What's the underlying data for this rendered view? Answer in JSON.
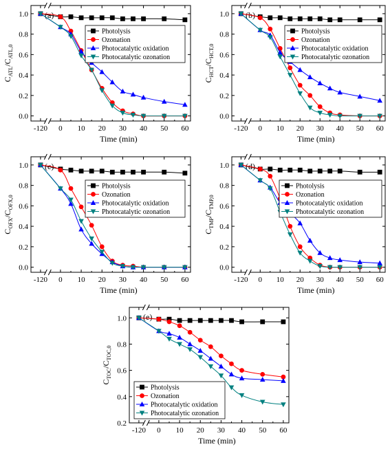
{
  "chart_data": [
    {
      "type": "line",
      "panel": "(a)",
      "xlabel": "Time (min)",
      "ylabel_main": "C",
      "ylabel_sub1": "ATL",
      "ylabel_sep": "/C",
      "ylabel_sub2": "ATL,0",
      "xticks": [
        "-120",
        "0",
        "10",
        "20",
        "30",
        "40",
        "50",
        "60"
      ],
      "yticks": [
        "0.0",
        "0.2",
        "0.4",
        "0.6",
        "0.8",
        "1.0"
      ],
      "ylim": [
        -0.05,
        1.08
      ],
      "legend_position": "top-right",
      "series": [
        {
          "name": "Photolysis",
          "color": "#000000",
          "marker": "square",
          "x": [
            -120,
            0,
            5,
            10,
            15,
            20,
            25,
            30,
            35,
            40,
            50,
            60
          ],
          "y": [
            1.0,
            0.97,
            0.97,
            0.96,
            0.96,
            0.96,
            0.96,
            0.95,
            0.95,
            0.95,
            0.95,
            0.94
          ]
        },
        {
          "name": "Ozonation",
          "color": "#ff0000",
          "marker": "circle",
          "x": [
            -120,
            0,
            5,
            10,
            15,
            20,
            25,
            30,
            35,
            40,
            50,
            60
          ],
          "y": [
            1.0,
            0.97,
            0.83,
            0.64,
            0.45,
            0.27,
            0.13,
            0.05,
            0.02,
            0.0,
            0.0,
            0.0
          ]
        },
        {
          "name": "Photocatalytic oxidation",
          "color": "#0000ff",
          "marker": "triangle-up",
          "x": [
            -120,
            0,
            5,
            10,
            15,
            20,
            25,
            30,
            35,
            40,
            50,
            60
          ],
          "y": [
            1.0,
            0.87,
            0.8,
            0.63,
            0.52,
            0.43,
            0.33,
            0.24,
            0.21,
            0.18,
            0.14,
            0.11
          ]
        },
        {
          "name": "Photocatalytic ozonation",
          "color": "#008080",
          "marker": "triangle-down",
          "x": [
            -120,
            0,
            5,
            10,
            15,
            20,
            25,
            30,
            35,
            40,
            50,
            60
          ],
          "y": [
            1.0,
            0.87,
            0.78,
            0.59,
            0.45,
            0.25,
            0.1,
            0.03,
            0.01,
            0.0,
            0.0,
            0.0
          ]
        }
      ]
    },
    {
      "type": "line",
      "panel": "(b)",
      "xlabel": "Time (min)",
      "ylabel_main": "C",
      "ylabel_sub1": "HCT",
      "ylabel_sep": "/C",
      "ylabel_sub2": "HCT,0",
      "xticks": [
        "-120",
        "0",
        "10",
        "20",
        "30",
        "40",
        "50",
        "60"
      ],
      "yticks": [
        "0.0",
        "0.2",
        "0.4",
        "0.6",
        "0.8",
        "1.0"
      ],
      "ylim": [
        -0.05,
        1.08
      ],
      "legend_position": "top-right",
      "series": [
        {
          "name": "Photolysis",
          "color": "#000000",
          "marker": "square",
          "x": [
            -120,
            0,
            5,
            10,
            15,
            20,
            25,
            30,
            35,
            40,
            50,
            60
          ],
          "y": [
            1.0,
            0.97,
            0.96,
            0.96,
            0.95,
            0.95,
            0.95,
            0.95,
            0.94,
            0.94,
            0.94,
            0.94
          ]
        },
        {
          "name": "Ozonation",
          "color": "#ff0000",
          "marker": "circle",
          "x": [
            -120,
            0,
            5,
            10,
            15,
            20,
            25,
            30,
            35,
            40,
            50,
            60
          ],
          "y": [
            1.0,
            0.96,
            0.85,
            0.66,
            0.47,
            0.3,
            0.2,
            0.09,
            0.03,
            0.01,
            0.0,
            0.0
          ]
        },
        {
          "name": "Photocatalytic oxidation",
          "color": "#0000ff",
          "marker": "triangle-up",
          "x": [
            -120,
            0,
            5,
            10,
            15,
            20,
            25,
            30,
            35,
            40,
            50,
            60
          ],
          "y": [
            1.0,
            0.84,
            0.79,
            0.62,
            0.53,
            0.45,
            0.38,
            0.32,
            0.27,
            0.23,
            0.19,
            0.15
          ]
        },
        {
          "name": "Photocatalytic ozonation",
          "color": "#008080",
          "marker": "triangle-down",
          "x": [
            -120,
            0,
            5,
            10,
            15,
            20,
            25,
            30,
            35,
            40,
            50,
            60
          ],
          "y": [
            1.0,
            0.84,
            0.77,
            0.58,
            0.4,
            0.22,
            0.08,
            0.03,
            0.01,
            0.0,
            0.0,
            0.0
          ]
        }
      ]
    },
    {
      "type": "line",
      "panel": "(c)",
      "xlabel": "Time (min)",
      "ylabel_main": "C",
      "ylabel_sub1": "OFX",
      "ylabel_sep": "/C",
      "ylabel_sub2": "OFX,0",
      "xticks": [
        "-120",
        "0",
        "10",
        "20",
        "30",
        "40",
        "50",
        "60"
      ],
      "yticks": [
        "0.0",
        "0.2",
        "0.4",
        "0.6",
        "0.8",
        "1.0"
      ],
      "ylim": [
        -0.05,
        1.08
      ],
      "legend_position": "top-right",
      "series": [
        {
          "name": "Photolysis",
          "color": "#000000",
          "marker": "square",
          "x": [
            -120,
            0,
            5,
            10,
            15,
            20,
            25,
            30,
            35,
            40,
            50,
            60
          ],
          "y": [
            1.0,
            0.96,
            0.95,
            0.94,
            0.94,
            0.94,
            0.93,
            0.93,
            0.93,
            0.93,
            0.93,
            0.92
          ]
        },
        {
          "name": "Ozonation",
          "color": "#ff0000",
          "marker": "circle",
          "x": [
            -120,
            0,
            5,
            10,
            15,
            20,
            25,
            30,
            35,
            40,
            50,
            60
          ],
          "y": [
            1.0,
            0.95,
            0.77,
            0.59,
            0.41,
            0.2,
            0.06,
            0.02,
            0.01,
            0.0,
            0.0,
            0.0
          ]
        },
        {
          "name": "Photocatalytic oxidation",
          "color": "#0000ff",
          "marker": "triangle-up",
          "x": [
            -120,
            0,
            5,
            10,
            15,
            20,
            25,
            30,
            35,
            40,
            50,
            60
          ],
          "y": [
            1.0,
            0.77,
            0.62,
            0.37,
            0.23,
            0.13,
            0.05,
            0.01,
            0.0,
            0.0,
            0.0,
            0.0
          ]
        },
        {
          "name": "Photocatalytic ozonation",
          "color": "#008080",
          "marker": "triangle-down",
          "x": [
            -120,
            0,
            5,
            10,
            15,
            20,
            25,
            30,
            35,
            40,
            50,
            60
          ],
          "y": [
            1.0,
            0.77,
            0.66,
            0.45,
            0.28,
            0.15,
            0.04,
            0.01,
            0.0,
            0.0,
            0.0,
            0.0
          ]
        }
      ]
    },
    {
      "type": "line",
      "panel": "(d)",
      "xlabel": "Time (min)",
      "ylabel_main": "C",
      "ylabel_sub1": "TMP",
      "ylabel_sep": "/C",
      "ylabel_sub2": "TMP,0",
      "xticks": [
        "-120",
        "0",
        "10",
        "20",
        "30",
        "40",
        "50",
        "60"
      ],
      "yticks": [
        "0.0",
        "0.2",
        "0.4",
        "0.6",
        "0.8",
        "1.0"
      ],
      "ylim": [
        -0.05,
        1.08
      ],
      "legend_position": "top-right",
      "series": [
        {
          "name": "Photolysis",
          "color": "#000000",
          "marker": "square",
          "x": [
            -120,
            0,
            5,
            10,
            15,
            20,
            25,
            30,
            35,
            40,
            50,
            60
          ],
          "y": [
            1.0,
            0.96,
            0.96,
            0.95,
            0.95,
            0.95,
            0.94,
            0.94,
            0.94,
            0.94,
            0.93,
            0.93
          ]
        },
        {
          "name": "Ozonation",
          "color": "#ff0000",
          "marker": "circle",
          "x": [
            -120,
            0,
            5,
            10,
            15,
            20,
            25,
            30,
            35,
            40,
            50,
            60
          ],
          "y": [
            1.0,
            0.96,
            0.89,
            0.67,
            0.4,
            0.2,
            0.09,
            0.02,
            0.0,
            0.0,
            0.0,
            0.0
          ]
        },
        {
          "name": "Photocatalytic oxidation",
          "color": "#0000ff",
          "marker": "triangle-up",
          "x": [
            -120,
            0,
            5,
            10,
            15,
            20,
            25,
            30,
            35,
            40,
            50,
            60
          ],
          "y": [
            1.0,
            0.85,
            0.78,
            0.63,
            0.53,
            0.43,
            0.26,
            0.14,
            0.09,
            0.07,
            0.05,
            0.04
          ]
        },
        {
          "name": "Photocatalytic ozonation",
          "color": "#008080",
          "marker": "triangle-down",
          "x": [
            -120,
            0,
            5,
            10,
            15,
            20,
            25,
            30,
            35,
            40,
            50,
            60
          ],
          "y": [
            1.0,
            0.85,
            0.77,
            0.54,
            0.32,
            0.14,
            0.06,
            0.01,
            0.0,
            0.0,
            0.0,
            0.0
          ]
        }
      ]
    },
    {
      "type": "line",
      "panel": "(e)",
      "xlabel": "Time (min)",
      "ylabel_main": "C",
      "ylabel_sub1": "TOC",
      "ylabel_sep": "/C",
      "ylabel_sub2": "TOC,0",
      "xticks": [
        "-120",
        "0",
        "10",
        "20",
        "30",
        "40",
        "50",
        "60"
      ],
      "yticks": [
        "0.2",
        "0.4",
        "0.6",
        "0.8",
        "1.0"
      ],
      "ylim": [
        0.2,
        1.08
      ],
      "legend_position": "bottom-left",
      "series": [
        {
          "name": "Photolysis",
          "color": "#000000",
          "marker": "square",
          "x": [
            -120,
            0,
            5,
            10,
            15,
            20,
            25,
            30,
            35,
            40,
            50,
            60
          ],
          "y": [
            1.0,
            0.99,
            0.99,
            0.98,
            0.98,
            0.98,
            0.98,
            0.98,
            0.98,
            0.97,
            0.97,
            0.97
          ]
        },
        {
          "name": "Ozonation",
          "color": "#ff0000",
          "marker": "circle",
          "x": [
            -120,
            0,
            5,
            10,
            15,
            20,
            25,
            30,
            35,
            40,
            50,
            60
          ],
          "y": [
            1.0,
            0.99,
            0.97,
            0.94,
            0.89,
            0.83,
            0.78,
            0.71,
            0.65,
            0.6,
            0.57,
            0.55
          ]
        },
        {
          "name": "Photocatalytic oxidation",
          "color": "#0000ff",
          "marker": "triangle-up",
          "x": [
            -120,
            0,
            5,
            10,
            15,
            20,
            25,
            30,
            35,
            40,
            50,
            60
          ],
          "y": [
            1.0,
            0.9,
            0.88,
            0.85,
            0.8,
            0.75,
            0.69,
            0.63,
            0.57,
            0.54,
            0.53,
            0.52
          ]
        },
        {
          "name": "Photocatalytic ozonation",
          "color": "#008080",
          "marker": "triangle-down",
          "x": [
            -120,
            0,
            5,
            10,
            15,
            20,
            25,
            30,
            35,
            40,
            50,
            60
          ],
          "y": [
            1.0,
            0.9,
            0.84,
            0.8,
            0.76,
            0.7,
            0.63,
            0.56,
            0.47,
            0.41,
            0.36,
            0.34
          ]
        }
      ]
    }
  ]
}
